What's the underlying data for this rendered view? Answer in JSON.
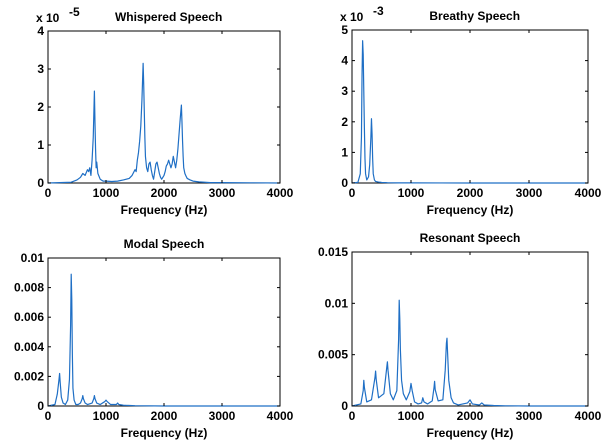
{
  "chart_data": [
    {
      "type": "line",
      "title": "Whispered Speech",
      "xlabel": "Frequency (Hz)",
      "ylabel": "",
      "xlim": [
        0,
        4000
      ],
      "ylim": [
        0,
        4
      ],
      "xticks": [
        0,
        1000,
        2000,
        3000,
        4000
      ],
      "xtick_labels": [
        "0",
        "1000",
        "2000",
        "3000",
        "4000"
      ],
      "yticks": [
        0,
        1,
        2,
        3,
        4
      ],
      "ytick_labels": [
        "0",
        "1",
        "2",
        "3",
        "4"
      ],
      "y_exponent_label": "x 10",
      "y_exponent": "-5",
      "grid": false,
      "color": "#1f6fc5",
      "series": [
        {
          "x": [
            0,
            400,
            500,
            560,
            600,
            640,
            680,
            700,
            720,
            740,
            760,
            780,
            790,
            800,
            810,
            820,
            830,
            840,
            860,
            900,
            950,
            1000,
            1100,
            1200,
            1300,
            1400,
            1450,
            1500,
            1520,
            1540,
            1560,
            1580,
            1600,
            1620,
            1640,
            1650,
            1660,
            1670,
            1680,
            1700,
            1720,
            1740,
            1760,
            1780,
            1800,
            1820,
            1840,
            1860,
            1880,
            1900,
            1920,
            1940,
            1960,
            1980,
            2000,
            2020,
            2040,
            2060,
            2080,
            2100,
            2120,
            2140,
            2160,
            2180,
            2200,
            2220,
            2240,
            2260,
            2280,
            2300,
            2310,
            2320,
            2330,
            2340,
            2360,
            2380,
            2400,
            2450,
            2500,
            2600,
            2700,
            2800,
            3000,
            3500,
            4000
          ],
          "y": [
            0,
            0.02,
            0.08,
            0.15,
            0.25,
            0.2,
            0.35,
            0.3,
            0.4,
            0.2,
            0.6,
            1.2,
            1.8,
            2.42,
            1.6,
            0.9,
            0.4,
            0.55,
            0.25,
            0.1,
            0.05,
            0.05,
            0.04,
            0.05,
            0.08,
            0.12,
            0.2,
            0.35,
            0.3,
            0.6,
            0.8,
            1.1,
            1.5,
            2.2,
            3.15,
            2.6,
            1.9,
            1.2,
            0.7,
            0.4,
            0.3,
            0.5,
            0.55,
            0.35,
            0.2,
            0.1,
            0.3,
            0.5,
            0.55,
            0.4,
            0.25,
            0.15,
            0.1,
            0.15,
            0.2,
            0.3,
            0.45,
            0.5,
            0.6,
            0.5,
            0.4,
            0.5,
            0.7,
            0.55,
            0.4,
            0.6,
            0.9,
            1.3,
            1.7,
            2.05,
            1.6,
            1.1,
            0.7,
            0.4,
            0.25,
            0.18,
            0.12,
            0.08,
            0.05,
            0.03,
            0.02,
            0.01,
            0.01,
            0.005,
            0
          ]
        }
      ]
    },
    {
      "type": "line",
      "title": "Breathy Speech",
      "xlabel": "Frequency (Hz)",
      "ylabel": "",
      "xlim": [
        0,
        4000
      ],
      "ylim": [
        0,
        5
      ],
      "xticks": [
        0,
        1000,
        2000,
        3000,
        4000
      ],
      "xtick_labels": [
        "0",
        "1000",
        "2000",
        "3000",
        "4000"
      ],
      "yticks": [
        0,
        1,
        2,
        3,
        4,
        5
      ],
      "ytick_labels": [
        "0",
        "1",
        "2",
        "3",
        "4",
        "5"
      ],
      "y_exponent_label": "x 10",
      "y_exponent": "-3",
      "grid": false,
      "color": "#1f6fc5",
      "series": [
        {
          "x": [
            0,
            100,
            140,
            160,
            170,
            180,
            190,
            200,
            210,
            220,
            230,
            250,
            280,
            300,
            320,
            330,
            340,
            350,
            360,
            380,
            400,
            450,
            500,
            600,
            800,
            1000,
            1500,
            2000,
            3000,
            4000
          ],
          "y": [
            0,
            0.02,
            0.3,
            1.5,
            3.5,
            4.65,
            4.2,
            3.0,
            1.8,
            0.8,
            0.3,
            0.1,
            0.2,
            0.6,
            1.5,
            2.1,
            1.6,
            0.8,
            0.3,
            0.1,
            0.05,
            0.03,
            0.02,
            0.01,
            0.005,
            0.003,
            0.002,
            0.001,
            0,
            0
          ]
        }
      ]
    },
    {
      "type": "line",
      "title": "Modal Speech",
      "xlabel": "Frequency (Hz)",
      "ylabel": "",
      "xlim": [
        0,
        4000
      ],
      "ylim": [
        0,
        0.01
      ],
      "xticks": [
        0,
        1000,
        2000,
        3000,
        4000
      ],
      "xtick_labels": [
        "0",
        "1000",
        "2000",
        "3000",
        "4000"
      ],
      "yticks": [
        0,
        0.002,
        0.004,
        0.006,
        0.008,
        0.01
      ],
      "ytick_labels": [
        "0",
        "0.002",
        "0.004",
        "0.006",
        "0.008",
        "0.01"
      ],
      "grid": false,
      "color": "#1f6fc5",
      "series": [
        {
          "x": [
            0,
            120,
            160,
            190,
            200,
            210,
            230,
            260,
            300,
            340,
            370,
            390,
            400,
            410,
            420,
            430,
            450,
            480,
            520,
            560,
            590,
            600,
            610,
            640,
            680,
            760,
            790,
            800,
            810,
            840,
            900,
            980,
            1000,
            1020,
            1080,
            1180,
            1200,
            1220,
            1300,
            1500,
            2000,
            3000,
            4000
          ],
          "y": [
            0,
            0.0001,
            0.0008,
            0.0018,
            0.0022,
            0.0016,
            0.0006,
            0.0002,
            0.0001,
            0.0004,
            0.0018,
            0.0055,
            0.0089,
            0.0072,
            0.0035,
            0.0012,
            0.0004,
            0.0001,
            0.0001,
            0.0002,
            0.0005,
            0.0007,
            0.0005,
            0.0002,
            0.0001,
            0.0002,
            0.0005,
            0.0007,
            0.0005,
            0.0002,
            0.0001,
            0.0003,
            0.0004,
            0.0003,
            0.0001,
            0.0001,
            0.0002,
            0.0001,
            5e-05,
            2e-05,
            0,
            0,
            0
          ]
        }
      ]
    },
    {
      "type": "line",
      "title": "Resonant Speech",
      "xlabel": "Frequency (Hz)",
      "ylabel": "",
      "xlim": [
        0,
        4000
      ],
      "ylim": [
        0,
        0.015
      ],
      "xticks": [
        0,
        1000,
        2000,
        3000,
        4000
      ],
      "xtick_labels": [
        "0",
        "1000",
        "2000",
        "3000",
        "4000"
      ],
      "yticks": [
        0,
        0.005,
        0.01,
        0.015
      ],
      "ytick_labels": [
        "0",
        "0.005",
        "0.01",
        "0.015"
      ],
      "grid": false,
      "color": "#1f6fc5",
      "series": [
        {
          "x": [
            0,
            150,
            190,
            200,
            210,
            250,
            330,
            390,
            400,
            410,
            450,
            540,
            590,
            600,
            610,
            650,
            700,
            760,
            790,
            800,
            810,
            820,
            840,
            870,
            920,
            980,
            1000,
            1020,
            1060,
            1120,
            1180,
            1200,
            1220,
            1280,
            1360,
            1390,
            1400,
            1410,
            1460,
            1540,
            1580,
            1600,
            1610,
            1620,
            1640,
            1680,
            1720,
            1800,
            1960,
            2000,
            2040,
            2160,
            2200,
            2240,
            2400,
            2600,
            3000,
            4000
          ],
          "y": [
            0,
            0.0002,
            0.0015,
            0.0025,
            0.0018,
            0.0004,
            0.0006,
            0.0028,
            0.0034,
            0.0026,
            0.0008,
            0.0012,
            0.0038,
            0.0043,
            0.0035,
            0.0012,
            0.0006,
            0.0015,
            0.0065,
            0.0103,
            0.0085,
            0.0055,
            0.0025,
            0.0012,
            0.0006,
            0.0014,
            0.0022,
            0.0015,
            0.0004,
            0.0002,
            0.0003,
            0.0008,
            0.0004,
            0.0002,
            0.0005,
            0.0018,
            0.0024,
            0.0016,
            0.0005,
            0.0006,
            0.0035,
            0.0061,
            0.0066,
            0.0052,
            0.0025,
            0.0008,
            0.0003,
            0.0001,
            0.0003,
            0.0006,
            0.0002,
            0.0001,
            0.0003,
            0.0001,
            5e-05,
            2e-05,
            0,
            0
          ]
        }
      ]
    }
  ]
}
